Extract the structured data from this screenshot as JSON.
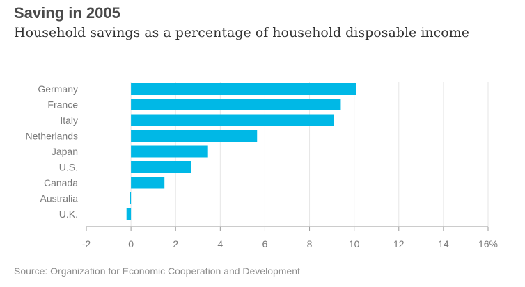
{
  "chart_data": {
    "type": "bar",
    "orientation": "horizontal",
    "title": "Saving in 2005",
    "subtitle": "Household savings as a percentage of household disposable income",
    "source": "Source: Organization for Economic Cooperation and Development",
    "categories": [
      "Germany",
      "France",
      "Italy",
      "Netherlands",
      "Japan",
      "U.S.",
      "Canada",
      "Australia",
      "U.K."
    ],
    "values": [
      10.1,
      9.4,
      9.1,
      5.65,
      3.45,
      2.7,
      1.5,
      -0.05,
      -0.2
    ],
    "xlim": [
      -2,
      16
    ],
    "xticks": [
      -2,
      0,
      2,
      4,
      6,
      8,
      10,
      12,
      14,
      16
    ],
    "xtick_labels": [
      "-2",
      "0",
      "2",
      "4",
      "6",
      "8",
      "10",
      "12",
      "14",
      "16%"
    ],
    "xlabel": "",
    "ylabel": "",
    "grid": true,
    "colors": {
      "bar": "#00b8e6",
      "grid": "#e6e6e6",
      "axis": "#9a9a9a",
      "label": "#7a7a7a",
      "title": "#4a4a4a"
    }
  }
}
